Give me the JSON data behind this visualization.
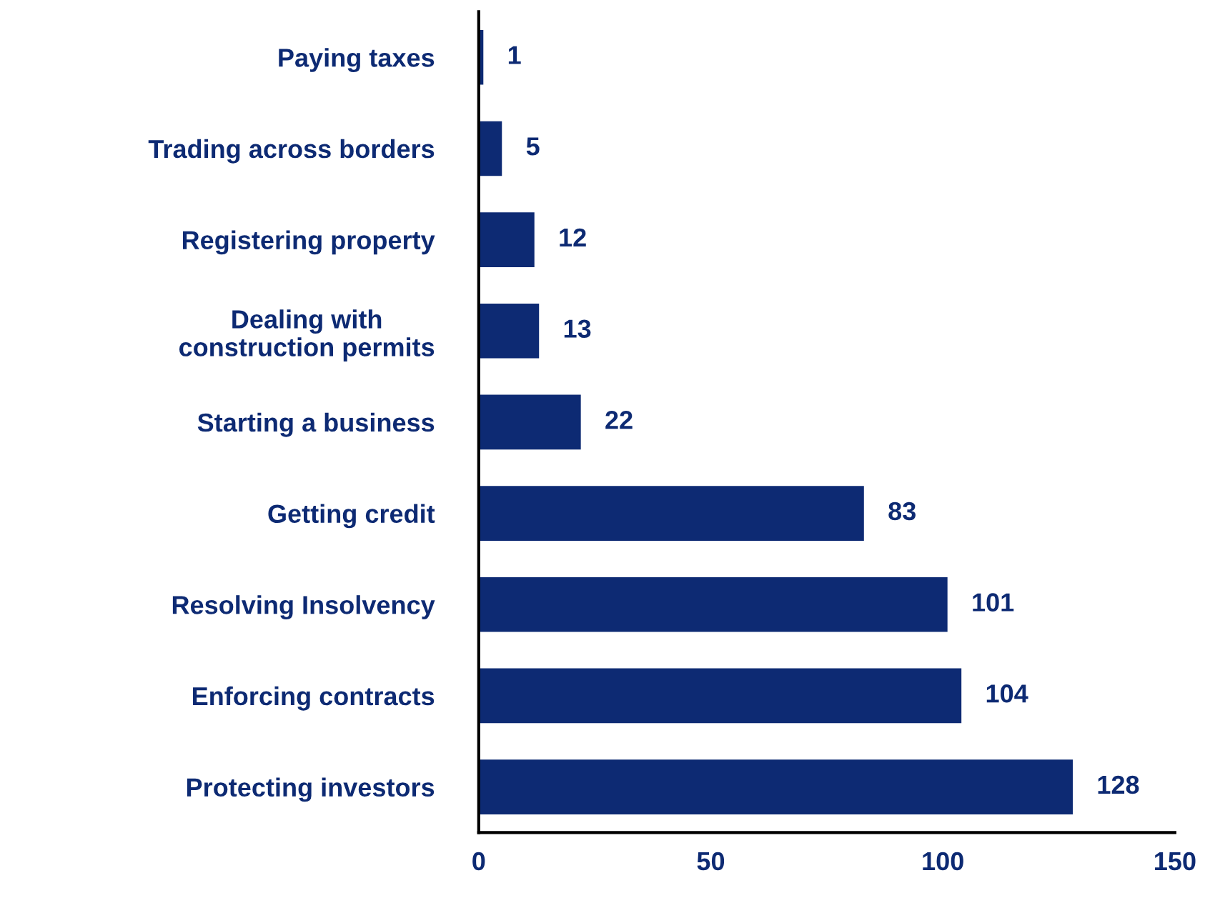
{
  "chart_data": {
    "type": "bar",
    "orientation": "horizontal",
    "categories": [
      "Paying taxes",
      "Trading across borders",
      "Registering property",
      "Dealing with\nconstruction permits",
      "Starting a business",
      "Getting credit",
      "Resolving Insolvency",
      "Enforcing contracts",
      "Protecting investors"
    ],
    "values": [
      1,
      5,
      12,
      13,
      22,
      83,
      101,
      104,
      128
    ],
    "color": "#0d2a73",
    "xlim": [
      0,
      150
    ],
    "xticks": [
      0,
      50,
      100,
      150
    ],
    "data_labels": true,
    "grid": false,
    "legend": false
  }
}
